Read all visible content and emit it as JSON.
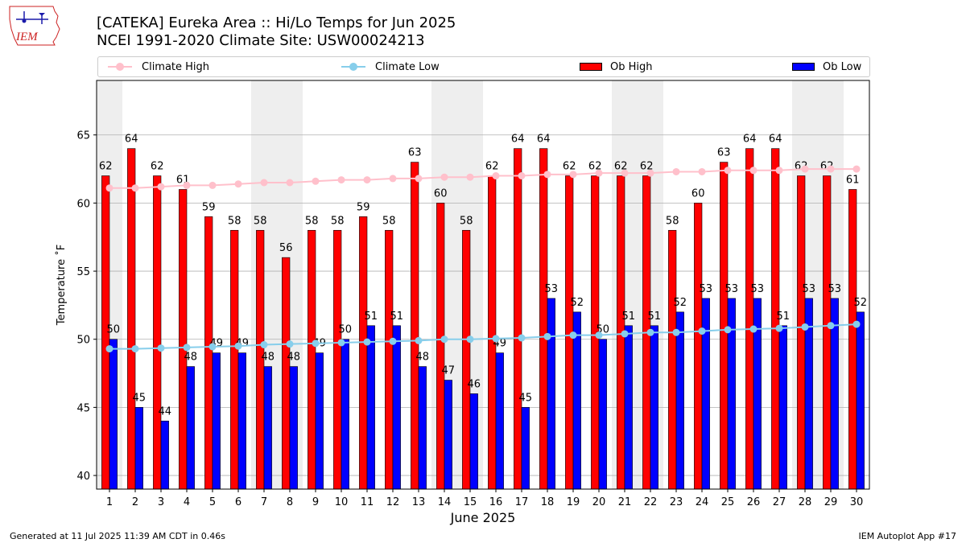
{
  "header": {
    "logo_text": "IEM",
    "title": "[CATEKA] Eureka Area :: Hi/Lo Temps for Jun 2025",
    "subtitle": "NCEI 1991-2020 Climate Site: USW00024213"
  },
  "footer": {
    "generated": "Generated at 11 Jul 2025 11:39 AM CDT in 0.46s",
    "app": "IEM Autoplot App #17"
  },
  "colors": {
    "ob_high": "#ff0000",
    "ob_low": "#0000ff",
    "climate_high": "#ffc0cb",
    "climate_low": "#87ceeb",
    "weekend_band": "#eeeeee",
    "grid": "#b0b0b0",
    "logo": "#cc2222"
  },
  "chart_data": {
    "type": "bar",
    "xlabel": "June 2025",
    "ylabel": "Temperature ˚F",
    "ylim": [
      39,
      69
    ],
    "xlim": [
      0.5,
      30.5
    ],
    "yticks": [
      40,
      45,
      50,
      55,
      60,
      65
    ],
    "grid": "horizontal",
    "legend_position": "top",
    "categories": [
      "1",
      "2",
      "3",
      "4",
      "5",
      "6",
      "7",
      "8",
      "9",
      "10",
      "11",
      "12",
      "13",
      "14",
      "15",
      "16",
      "17",
      "18",
      "19",
      "20",
      "21",
      "22",
      "23",
      "24",
      "25",
      "26",
      "27",
      "28",
      "29",
      "30"
    ],
    "weekend_bands": [
      [
        0.5,
        1.5
      ],
      [
        6.5,
        8.5
      ],
      [
        13.5,
        15.5
      ],
      [
        20.5,
        22.5
      ],
      [
        27.5,
        29.5
      ]
    ],
    "series": [
      {
        "name": "Ob High",
        "kind": "bar",
        "values": [
          62,
          64,
          62,
          61,
          59,
          58,
          58,
          56,
          58,
          58,
          59,
          58,
          63,
          60,
          58,
          62,
          64,
          64,
          62,
          62,
          62,
          62,
          58,
          60,
          63,
          64,
          64,
          62,
          62,
          61
        ]
      },
      {
        "name": "Ob Low",
        "kind": "bar",
        "values": [
          50,
          45,
          44,
          48,
          49,
          49,
          48,
          48,
          49,
          50,
          51,
          51,
          48,
          47,
          46,
          49,
          45,
          53,
          52,
          50,
          51,
          51,
          52,
          53,
          53,
          53,
          51,
          53,
          53,
          52
        ]
      },
      {
        "name": "Climate High",
        "kind": "line",
        "values": [
          61.1,
          61.1,
          61.2,
          61.3,
          61.3,
          61.4,
          61.5,
          61.5,
          61.6,
          61.7,
          61.7,
          61.8,
          61.8,
          61.9,
          61.9,
          62.0,
          62.0,
          62.1,
          62.1,
          62.2,
          62.2,
          62.2,
          62.3,
          62.3,
          62.4,
          62.4,
          62.4,
          62.5,
          62.5,
          62.5
        ]
      },
      {
        "name": "Climate Low",
        "kind": "line",
        "values": [
          49.3,
          49.3,
          49.35,
          49.4,
          49.45,
          49.5,
          49.6,
          49.65,
          49.7,
          49.75,
          49.8,
          49.85,
          49.9,
          50.0,
          50.0,
          50.05,
          50.1,
          50.2,
          50.3,
          50.3,
          50.4,
          50.5,
          50.5,
          50.6,
          50.7,
          50.75,
          50.8,
          50.9,
          51.0,
          51.1
        ]
      }
    ]
  }
}
